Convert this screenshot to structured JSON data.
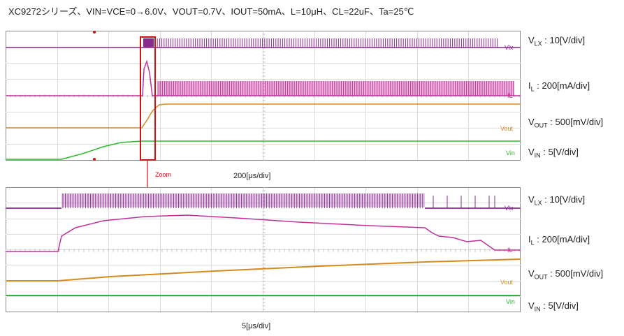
{
  "title": "XC9272シリーズ、VIN=VCE=0→6.0V、VOUT=0.7V、IOUT=50mA、L=10μH、CL=22uF、Ta=25℃",
  "top_panel": {
    "time_div": "200[μs/div]",
    "zoom_label": "Zoom",
    "channel_tags": [
      "Vlx",
      "IL",
      "Vout",
      "Vin"
    ],
    "channels": [
      {
        "name_main": "V",
        "name_sub": "LX",
        "scale": "10[V/div]"
      },
      {
        "name_main": "I",
        "name_sub": "L",
        "scale": "200[mA/div]"
      },
      {
        "name_main": "V",
        "name_sub": "OUT",
        "scale": "500[mV/div]"
      },
      {
        "name_main": "V",
        "name_sub": "IN",
        "scale": "5[V/div]"
      }
    ]
  },
  "bottom_panel": {
    "time_div": "5[μs/div]",
    "channel_tags": [
      "Vlx",
      "IL",
      "Vout",
      "Vin"
    ],
    "channels": [
      {
        "name_main": "V",
        "name_sub": "LX",
        "scale": "10[V/div]"
      },
      {
        "name_main": "I",
        "name_sub": "L",
        "scale": "200[mA/div]"
      },
      {
        "name_main": "V",
        "name_sub": "OUT",
        "scale": "500[mV/div]"
      },
      {
        "name_main": "V",
        "name_sub": "IN",
        "scale": "5[V/div]"
      }
    ]
  },
  "colors": {
    "vlx": "#8a2a8f",
    "il": "#c0309a",
    "vout": "#d68a1e",
    "vin": "#2eb82e",
    "zoom": "#d11111"
  },
  "chart_data": [
    {
      "type": "line",
      "title": "XC9272シリーズ、VIN=VCE=0→6.0V、VOUT=0.7V、IOUT=50mA、L=10μH、CL=22uF、Ta=25℃",
      "xlabel": "200[μs/div]",
      "series": [
        {
          "name": "Vlx",
          "unit": "V",
          "points": [
            [
              0,
              0
            ],
            [
              5.3,
              0
            ],
            [
              5.3,
              6
            ],
            [
              19.5,
              6
            ]
          ],
          "note": "switching after start"
        },
        {
          "name": "IL",
          "unit": "mA",
          "points": [
            [
              0,
              0
            ],
            [
              5.2,
              0
            ],
            [
              5.35,
              400
            ],
            [
              5.6,
              180
            ],
            [
              5.9,
              0
            ],
            [
              19.5,
              0
            ]
          ]
        },
        {
          "name": "Vout",
          "unit": "V",
          "points": [
            [
              0,
              0
            ],
            [
              5.1,
              0
            ],
            [
              5.7,
              0.7
            ],
            [
              19.5,
              0.7
            ]
          ]
        },
        {
          "name": "Vin",
          "unit": "V",
          "points": [
            [
              0,
              0
            ],
            [
              2.2,
              0
            ],
            [
              4.8,
              6
            ],
            [
              19.5,
              6
            ]
          ]
        }
      ]
    },
    {
      "type": "line",
      "xlabel": "5[μs/div]",
      "series": [
        {
          "name": "Vlx",
          "unit": "V",
          "points": [
            [
              0,
              0
            ],
            [
              2,
              0
            ],
            [
              2,
              6
            ],
            [
              15.5,
              6
            ],
            [
              19.5,
              0
            ]
          ]
        },
        {
          "name": "IL",
          "unit": "mA",
          "points": [
            [
              0,
              0
            ],
            [
              2,
              0
            ],
            [
              2.3,
              200
            ],
            [
              5.5,
              330
            ],
            [
              15.5,
              200
            ],
            [
              18.5,
              80
            ],
            [
              19.5,
              0
            ]
          ]
        },
        {
          "name": "Vout",
          "unit": "V",
          "points": [
            [
              0,
              0
            ],
            [
              2,
              0
            ],
            [
              19.5,
              0.4
            ]
          ]
        },
        {
          "name": "Vin",
          "unit": "V",
          "points": [
            [
              0,
              6
            ],
            [
              19.5,
              6
            ]
          ]
        }
      ]
    }
  ]
}
